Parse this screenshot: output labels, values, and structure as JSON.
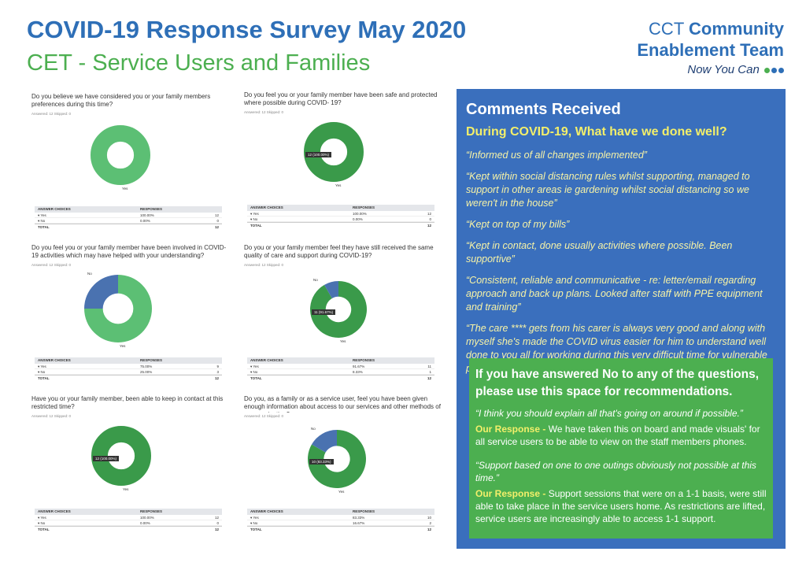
{
  "header": {
    "title": "COVID-19 Response Survey May 2020",
    "subtitle": "CET - Service Users and Families"
  },
  "logo": {
    "line1_a": "CCT",
    "line1_b": "Community",
    "line2": "Enablement Team",
    "line3": "Now You Can",
    "dot_colors": [
      "#4caf50",
      "#2e6fb7",
      "#2e6fb7"
    ]
  },
  "table_labels": {
    "answer": "ANSWER CHOICES",
    "responses": "RESPONSES",
    "total": "TOTAL",
    "answered": "Answered: 12",
    "skipped": "Skipped: 0"
  },
  "panels": [
    {
      "question": "Do you believe we have considered you or your family members preferences during this time?",
      "yes_pct": 100,
      "tooltip": "",
      "rows": [
        [
          "Yes",
          "100.00%",
          "12"
        ],
        [
          "No",
          "0.00%",
          "0"
        ]
      ],
      "total": "12",
      "color": "#5cbf74"
    },
    {
      "question": "Do you feel you or your family member have been safe and protected where possible during COVID- 19?",
      "yes_pct": 100,
      "tooltip": "12 (100.00%)",
      "rows": [
        [
          "Yes",
          "100.00%",
          "12"
        ],
        [
          "No",
          "0.00%",
          "0"
        ]
      ],
      "total": "12",
      "color": "#3a9a4a"
    },
    {
      "question": "Do you feel you or your family member have been involved in COVID-19 activities which may have helped with your understanding?",
      "yes_pct": 75,
      "tooltip": "",
      "rows": [
        [
          "Yes",
          "75.00%",
          "9"
        ],
        [
          "No",
          "25.00%",
          "3"
        ]
      ],
      "total": "12",
      "color": "#5cbf74"
    },
    {
      "question": "Do you or your family member feel they have still received the same quality of care and support during COVID-19?",
      "yes_pct": 91.67,
      "tooltip": "11 (91.67%)",
      "rows": [
        [
          "Yes",
          "91.67%",
          "11"
        ],
        [
          "No",
          "8.33%",
          "1"
        ]
      ],
      "total": "12",
      "color": "#3a9a4a"
    },
    {
      "question": "Have you or your family member, been able to keep in contact at this restricted time?",
      "yes_pct": 100,
      "tooltip": "12 (100.00%)",
      "rows": [
        [
          "Yes",
          "100.00%",
          "12"
        ],
        [
          "No",
          "0.00%",
          "0"
        ]
      ],
      "total": "12",
      "color": "#3a9a4a"
    },
    {
      "question": "Do you, as a family or as a service user, feel you have been given enough information about access to our services and other methods of communication?",
      "yes_pct": 83.33,
      "tooltip": "10 (83.33%)",
      "rows": [
        [
          "Yes",
          "83.33%",
          "10"
        ],
        [
          "No",
          "16.67%",
          "2"
        ]
      ],
      "total": "12",
      "color": "#3a9a4a"
    }
  ],
  "comments": {
    "heading": "Comments Received",
    "subheading": "During COVID-19, What have we done well?",
    "items": [
      "“Informed us of all changes implemented”",
      "“Kept within social distancing rules whilst supporting, managed to support in other areas ie gardening whilst social distancing so we weren't in the house”",
      "“Kept on top of my bills”",
      "“Kept in contact, done usually activities where possible. Been supportive”",
      "“Consistent, reliable and communicative - re: letter/email regarding approach and back up plans. Looked after staff with PPE equipment and training”",
      "“The care **** gets from his carer is always very good and along with myself she's made the COVID virus easier for him to understand well done to you all for working during this very difficult time for vulnerable people.”"
    ]
  },
  "recommendations": {
    "heading": "If you have answered No to any of the questions, please use this space for recommendations.",
    "response_label": "Our Response -",
    "items": [
      {
        "quote": "“I think you should explain all that's going on around if possible.”",
        "response": "We have taken this on board and made visuals' for all service users to be able to view on the staff members phones."
      },
      {
        "quote": "“Support based on one to one outings obviously not possible at this time.”",
        "response": "Support sessions that were on a 1-1 basis, were still able to take place in the service users home. As restrictions are lifted, service users are increasingly able to access 1-1 support."
      }
    ]
  },
  "colors": {
    "no_slice": "#4a72b0"
  }
}
